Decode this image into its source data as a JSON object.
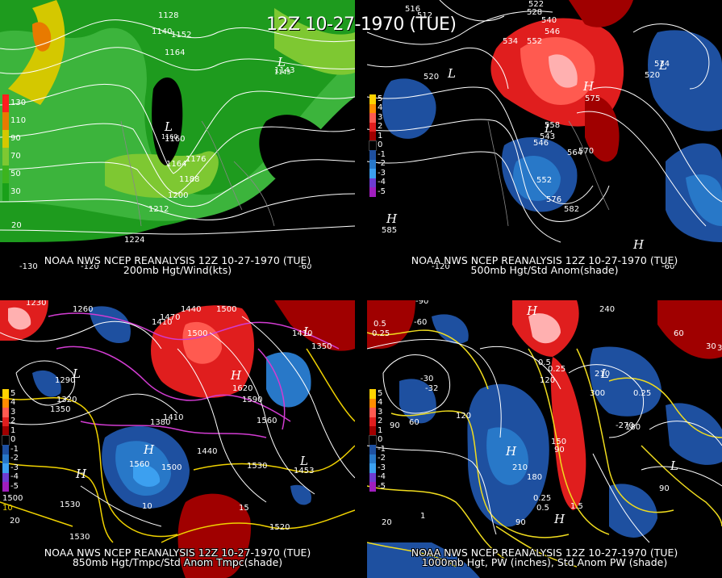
{
  "title": "12Z 10-27-1970 (TUE)",
  "panels": [
    {
      "caption_line1": "NOAA NWS NCEP REANALYSIS 12Z 10-27-1970 (TUE)",
      "caption_line2": "200mb Hgt/Wind(kts)",
      "legend": [
        {
          "label": "130",
          "color": "#ff1e1e"
        },
        {
          "label": "110",
          "color": "#e87a00"
        },
        {
          "label": "90",
          "color": "#d4c800"
        },
        {
          "label": "70",
          "color": "#7ec832"
        },
        {
          "label": "50",
          "color": "#3cb41e"
        },
        {
          "label": "30",
          "color": "#19a019"
        }
      ],
      "contour_labels": [
        "1128",
        "1140",
        "1152",
        "1164",
        "1143",
        "1160",
        "1164",
        "1176",
        "1188",
        "1200",
        "1212",
        "1224",
        "20",
        "-130",
        "-120",
        "-60"
      ],
      "lows": [
        "L",
        "L"
      ],
      "low_values": [
        "1143",
        "1160"
      ]
    },
    {
      "caption_line1": "NOAA NWS NCEP REANALYSIS 12Z 10-27-1970 (TUE)",
      "caption_line2": "500mb Hgt/Std Anom(shade)",
      "legend": [
        {
          "label": "5",
          "color": "#ffd200"
        },
        {
          "label": "4",
          "color": "#ff8c00"
        },
        {
          "label": "3",
          "color": "#ff5a50"
        },
        {
          "label": "2",
          "color": "#e01e1e"
        },
        {
          "label": "1",
          "color": "#a00000"
        },
        {
          "label": "0",
          "color": "#000000"
        },
        {
          "label": "-1",
          "color": "#1e50a0"
        },
        {
          "label": "-2",
          "color": "#2878c8"
        },
        {
          "label": "-3",
          "color": "#3ca0f0"
        },
        {
          "label": "-4",
          "color": "#6e3cd2"
        },
        {
          "label": "-5",
          "color": "#a01ebe"
        }
      ],
      "contour_labels": [
        "516",
        "522",
        "528",
        "512",
        "540",
        "546",
        "534",
        "552",
        "558",
        "546",
        "543",
        "552",
        "564",
        "570",
        "576",
        "582",
        "534",
        "520",
        "520",
        "575",
        "585",
        "-120",
        "-60"
      ],
      "highs": [
        "H",
        "H",
        "H"
      ],
      "lows": [
        "L",
        "L",
        "L"
      ]
    },
    {
      "caption_line1": "NOAA NWS NCEP REANALYSIS 12Z 10-27-1970 (TUE)",
      "caption_line2": "850mb Hgt/Tmpc/Std Anom Tmpc(shade)",
      "legend": [
        {
          "label": "5",
          "color": "#ffd200"
        },
        {
          "label": "4",
          "color": "#ff8c00"
        },
        {
          "label": "3",
          "color": "#ff5a50"
        },
        {
          "label": "2",
          "color": "#e01e1e"
        },
        {
          "label": "1",
          "color": "#a00000"
        },
        {
          "label": "0",
          "color": "#000000"
        },
        {
          "label": "-1",
          "color": "#1e50a0"
        },
        {
          "label": "-2",
          "color": "#2878c8"
        },
        {
          "label": "-3",
          "color": "#3ca0f0"
        },
        {
          "label": "-4",
          "color": "#6e3cd2"
        },
        {
          "label": "-5",
          "color": "#a01ebe"
        }
      ],
      "legend_extra": [
        "1500",
        "10"
      ],
      "contour_labels": [
        "1230",
        "1260",
        "1440",
        "1500",
        "1470",
        "1410",
        "1500",
        "1290",
        "1320",
        "1350",
        "1380",
        "1410",
        "1350",
        "1620",
        "1590",
        "1560",
        "1410",
        "1560",
        "1500",
        "1440",
        "1530",
        "1530",
        "1453",
        "1520",
        "1530",
        "10",
        "15",
        "20"
      ],
      "highs": [
        "H",
        "H",
        "H"
      ],
      "lows": [
        "L",
        "L",
        "L"
      ]
    },
    {
      "caption_line1": "NOAA NWS NCEP REANALYSIS 12Z 10-27-1970 (TUE)",
      "caption_line2": "1000mb Hgt, PW (inches), Std Anom PW (shade)",
      "legend": [
        {
          "label": "5",
          "color": "#ffd200"
        },
        {
          "label": "4",
          "color": "#ff8c00"
        },
        {
          "label": "3",
          "color": "#ff5a50"
        },
        {
          "label": "2",
          "color": "#e01e1e"
        },
        {
          "label": "1",
          "color": "#a00000"
        },
        {
          "label": "0",
          "color": "#000000"
        },
        {
          "label": "-1",
          "color": "#1e50a0"
        },
        {
          "label": "-2",
          "color": "#2878c8"
        },
        {
          "label": "-3",
          "color": "#3ca0f0"
        },
        {
          "label": "-4",
          "color": "#6e3cd2"
        },
        {
          "label": "-5",
          "color": "#a01ebe"
        }
      ],
      "contour_labels": [
        "-90",
        "-60",
        "0.5",
        "0.25",
        "240",
        "60",
        "30",
        "-30",
        "-32",
        "90",
        "60",
        "120",
        "120",
        "0.5",
        "0.25",
        "300",
        "210",
        "-270",
        "180",
        "0.25",
        "150",
        "210",
        "180",
        "90",
        "0.25",
        "0.5",
        "1.5",
        "90",
        "1",
        "90",
        "30",
        "20"
      ],
      "highs": [
        "H",
        "H",
        "H"
      ],
      "lows": [
        "L",
        "L"
      ]
    }
  ]
}
